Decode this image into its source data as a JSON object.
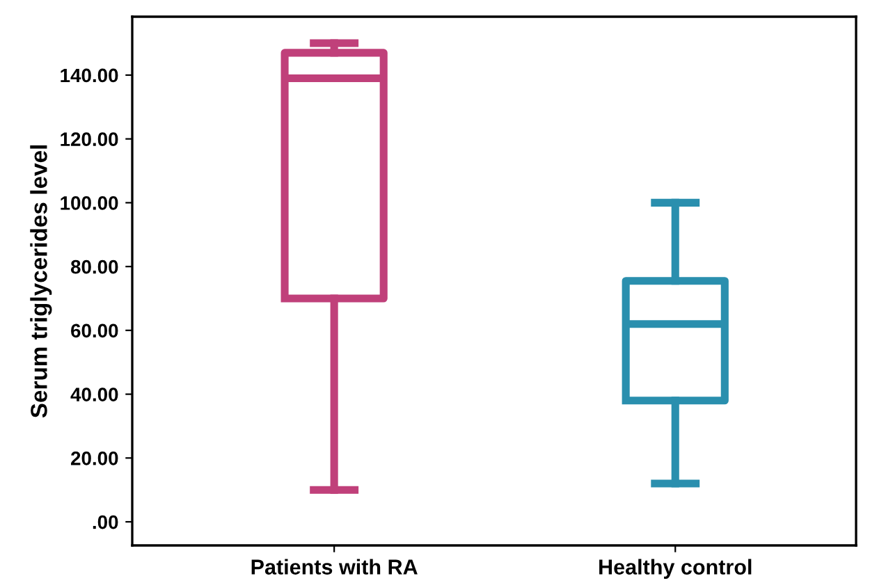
{
  "chart_data": {
    "type": "box",
    "ylabel": "Serum triglycerides level",
    "categories": [
      "Patients with RA",
      "Healthy control"
    ],
    "colors": [
      "#c0407a",
      "#2a8fae"
    ],
    "boxes": [
      {
        "low": 10,
        "q1": 70,
        "median": 139,
        "q3": 147,
        "high": 150
      },
      {
        "low": 12,
        "q1": 38,
        "median": 62,
        "q3": 75.5,
        "high": 100
      }
    ],
    "ylim": [
      -7.4,
      158.3
    ],
    "yticks": [
      {
        "value": 0,
        "label": ".00"
      },
      {
        "value": 20,
        "label": "20.00"
      },
      {
        "value": 40,
        "label": "40.00"
      },
      {
        "value": 60,
        "label": "60.00"
      },
      {
        "value": 80,
        "label": "80.00"
      },
      {
        "value": 100,
        "label": "100.00"
      },
      {
        "value": 120,
        "label": "120.00"
      },
      {
        "value": 140,
        "label": "140.00"
      }
    ],
    "grid": false
  }
}
